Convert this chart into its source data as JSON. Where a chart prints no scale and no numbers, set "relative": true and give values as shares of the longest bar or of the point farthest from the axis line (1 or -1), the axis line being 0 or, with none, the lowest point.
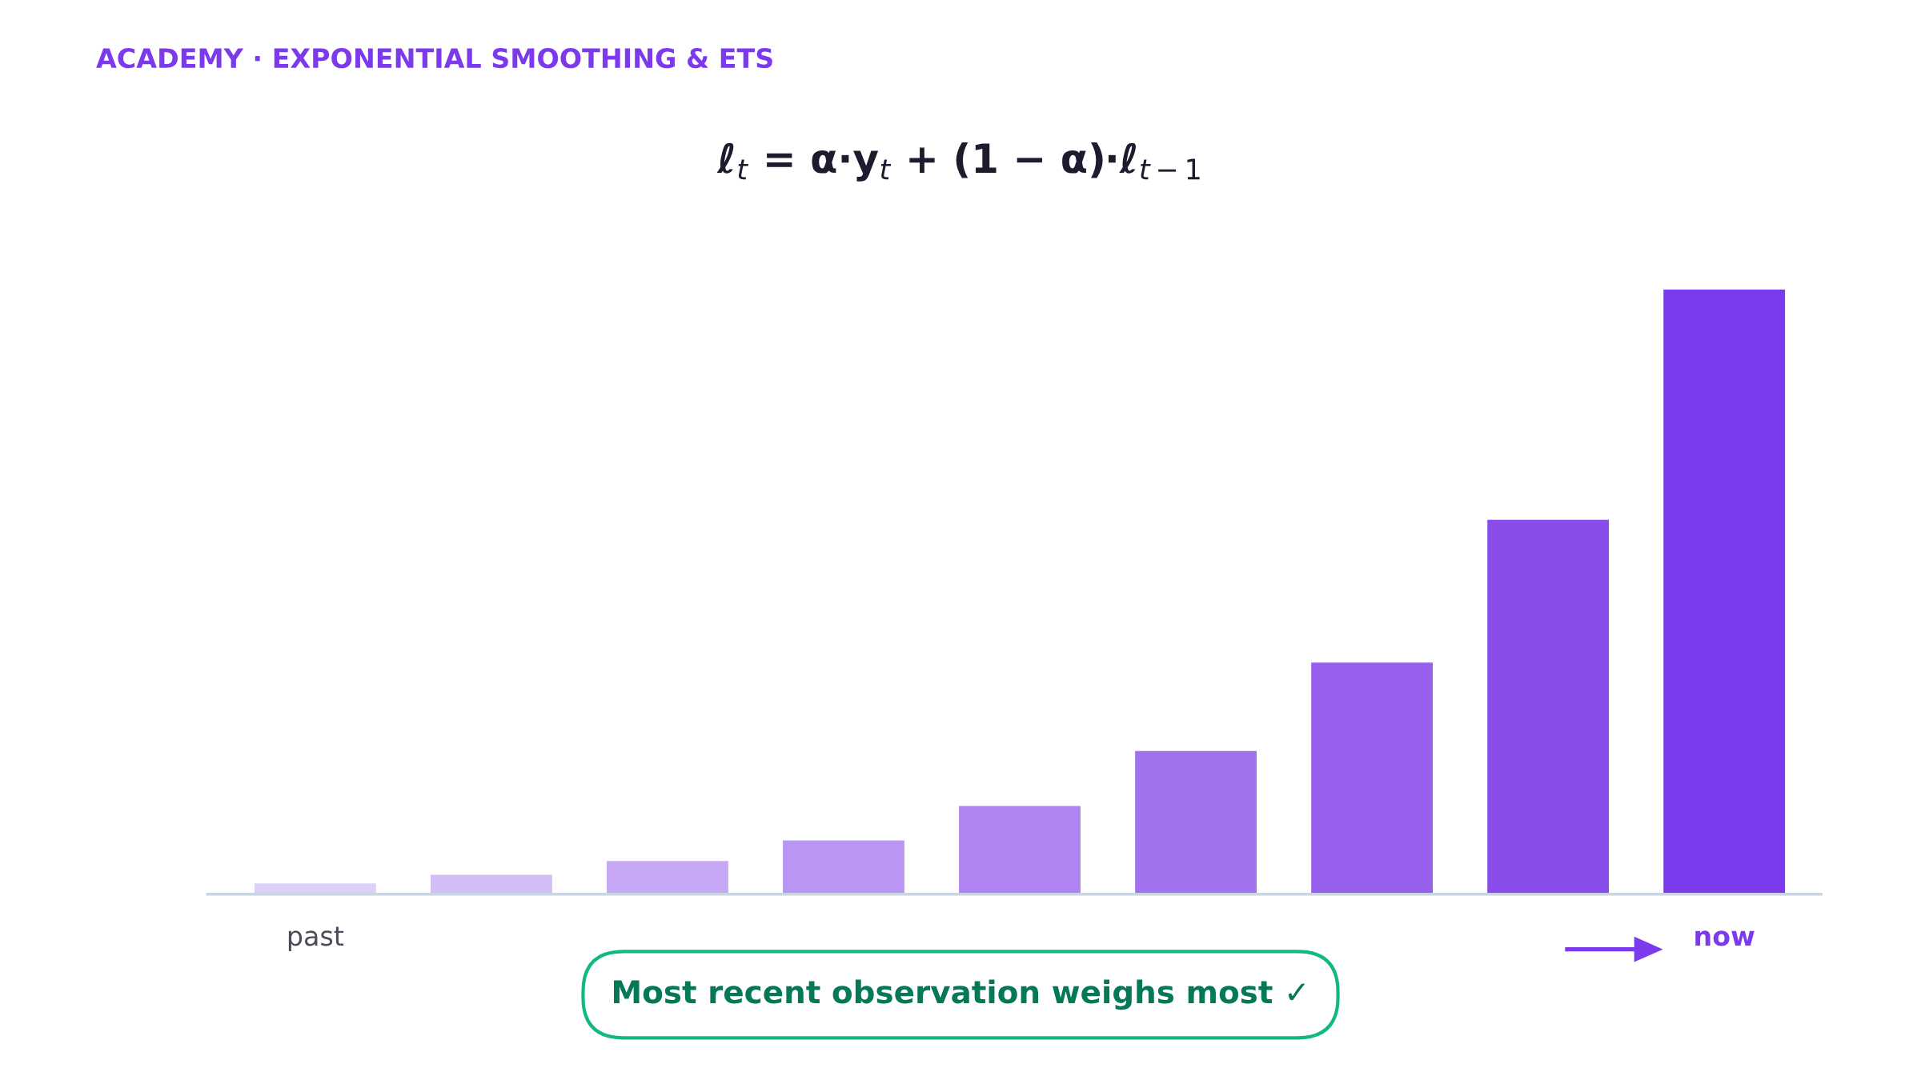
{
  "chart_data": {
    "type": "bar",
    "relative": true,
    "title": "ACADEMY · EXPONENTIAL SMOOTHING & ETS",
    "subtitle": "ℓ$_{t}$ = α·y$_{t}$ + (1 − α)·ℓ$_{t−1}$",
    "categories": [
      "past",
      null,
      null,
      null,
      null,
      null,
      null,
      null,
      "now"
    ],
    "values": [
      0.018,
      0.032,
      0.055,
      0.089,
      0.146,
      0.237,
      0.383,
      0.619,
      1
    ],
    "colors": [
      "#ddd0f8",
      "#d2bdf7",
      "#c6a8f5",
      "#b996f3",
      "#ad84f0",
      "#a172ee",
      "#965fec",
      "#8a4deb",
      "#7c3aed"
    ],
    "annotations": [
      "Most recent observation weighs most ✓"
    ]
  }
}
